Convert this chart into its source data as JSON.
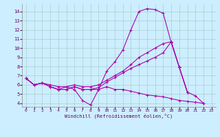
{
  "xlabel": "Windchill (Refroidissement éolien,°C)",
  "bg_color": "#cceeff",
  "grid_color": "#aacccc",
  "line_color": "#aa00aa",
  "xlim": [
    -0.5,
    23.5
  ],
  "ylim": [
    3.6,
    14.8
  ],
  "xticks": [
    0,
    1,
    2,
    3,
    4,
    5,
    6,
    7,
    8,
    9,
    10,
    11,
    12,
    13,
    14,
    15,
    16,
    17,
    18,
    19,
    20,
    21,
    22,
    23
  ],
  "yticks": [
    4,
    5,
    6,
    7,
    8,
    9,
    10,
    11,
    12,
    13,
    14
  ],
  "line1_y": [
    6.7,
    6.0,
    6.2,
    5.8,
    5.5,
    5.8,
    5.5,
    4.3,
    3.8,
    5.5,
    7.5,
    8.5,
    9.8,
    12.0,
    14.0,
    14.3,
    14.2,
    13.8,
    10.6,
    7.9,
    5.2,
    4.8,
    4.0,
    null
  ],
  "line2_y": [
    6.7,
    6.0,
    6.2,
    5.8,
    5.5,
    5.5,
    5.8,
    5.5,
    5.5,
    5.7,
    6.3,
    6.8,
    7.3,
    7.8,
    8.2,
    8.6,
    9.0,
    9.5,
    10.7,
    7.9,
    5.2,
    null,
    null,
    null
  ],
  "line3_y": [
    6.7,
    6.0,
    6.2,
    5.8,
    5.5,
    5.5,
    5.8,
    5.5,
    5.5,
    5.5,
    5.8,
    5.5,
    5.5,
    5.3,
    5.1,
    4.9,
    4.8,
    4.7,
    4.5,
    4.3,
    4.2,
    4.1,
    4.0,
    null
  ],
  "line4_y": [
    6.7,
    6.0,
    6.2,
    6.0,
    5.8,
    5.8,
    6.0,
    5.8,
    5.8,
    6.0,
    6.5,
    7.0,
    7.5,
    8.2,
    9.0,
    9.5,
    10.0,
    10.5,
    10.7,
    7.9,
    5.2,
    null,
    null,
    null
  ]
}
